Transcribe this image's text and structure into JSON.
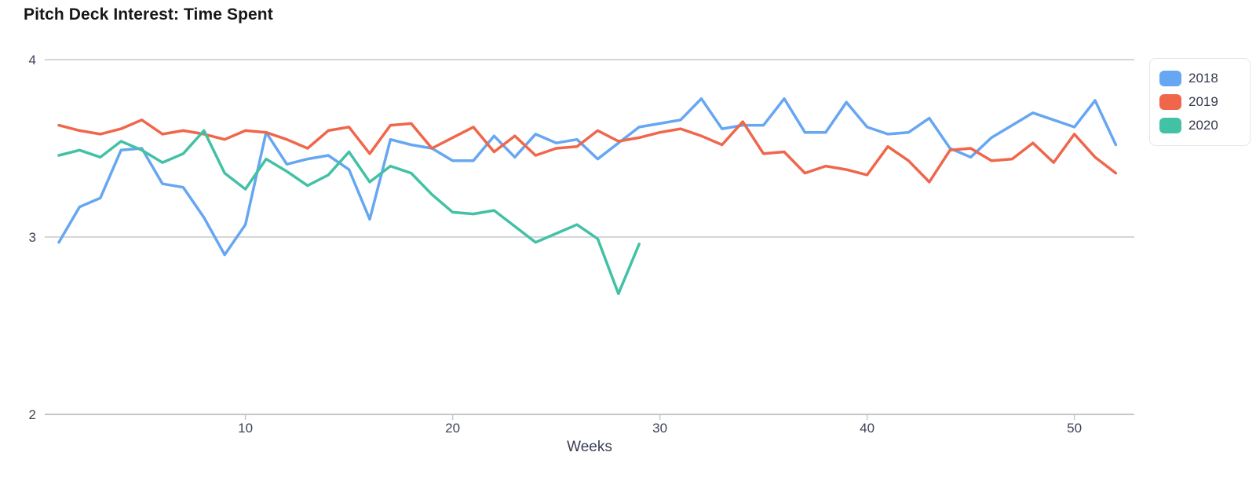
{
  "title": "Pitch Deck Interest: Time Spent",
  "chart_data": {
    "type": "line",
    "title": "Pitch Deck Interest: Time Spent",
    "xlabel": "Weeks",
    "ylabel": "",
    "xlim": [
      1,
      52
    ],
    "ylim": [
      2,
      4
    ],
    "x_ticks": [
      10,
      20,
      30,
      40,
      50
    ],
    "y_ticks": [
      4,
      3,
      2
    ],
    "grid": "horizontal-only",
    "legend_position": "top-right",
    "x_unit": "week",
    "series": [
      {
        "name": "2018",
        "color": "#66a6f2",
        "x_start": 1,
        "values": [
          2.97,
          3.17,
          3.22,
          3.49,
          3.5,
          3.3,
          3.28,
          3.11,
          2.9,
          3.07,
          3.59,
          3.41,
          3.44,
          3.46,
          3.38,
          3.1,
          3.55,
          3.52,
          3.5,
          3.43,
          3.43,
          3.57,
          3.45,
          3.58,
          3.53,
          3.55,
          3.44,
          3.53,
          3.62,
          3.64,
          3.66,
          3.78,
          3.61,
          3.63,
          3.63,
          3.78,
          3.59,
          3.59,
          3.76,
          3.62,
          3.58,
          3.59,
          3.67,
          3.5,
          3.45,
          3.56,
          3.63,
          3.7,
          3.66,
          3.62,
          3.77,
          3.52
        ]
      },
      {
        "name": "2019",
        "color": "#f0664b",
        "x_start": 1,
        "values": [
          3.63,
          3.6,
          3.58,
          3.61,
          3.66,
          3.58,
          3.6,
          3.58,
          3.55,
          3.6,
          3.59,
          3.55,
          3.5,
          3.6,
          3.62,
          3.47,
          3.63,
          3.64,
          3.5,
          3.56,
          3.62,
          3.48,
          3.57,
          3.46,
          3.5,
          3.51,
          3.6,
          3.54,
          3.56,
          3.59,
          3.61,
          3.57,
          3.52,
          3.65,
          3.47,
          3.48,
          3.36,
          3.4,
          3.38,
          3.35,
          3.51,
          3.43,
          3.31,
          3.49,
          3.5,
          3.43,
          3.44,
          3.53,
          3.42,
          3.58,
          3.45,
          3.36
        ]
      },
      {
        "name": "2020",
        "color": "#42c1a5",
        "x_start": 1,
        "values": [
          3.46,
          3.49,
          3.45,
          3.54,
          3.49,
          3.42,
          3.47,
          3.6,
          3.36,
          3.27,
          3.44,
          3.37,
          3.29,
          3.35,
          3.48,
          3.31,
          3.4,
          3.36,
          3.24,
          3.14,
          3.13,
          3.15,
          3.06,
          2.97,
          3.02,
          3.07,
          2.99,
          2.68,
          2.96
        ]
      }
    ]
  },
  "colors": {
    "background": "#ffffff",
    "gridline": "#d6d6d6",
    "axis_baseline": "#c6c6c8",
    "tick_mark": "#c9c9c9",
    "axis_text": "#3d4257",
    "title_text": "#16171b",
    "legend_border": "#e6e6e9"
  }
}
